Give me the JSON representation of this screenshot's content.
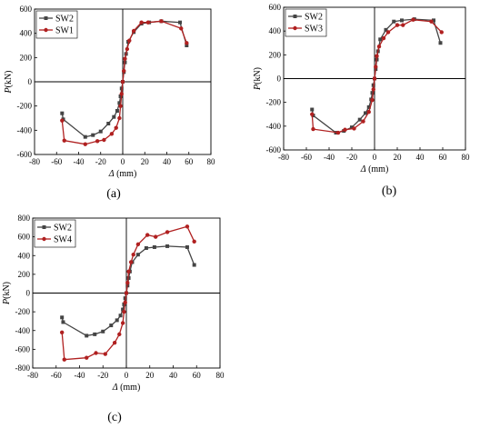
{
  "chart_data": [
    {
      "type": "line",
      "panel_label": "(a)",
      "xlabel_symbol": "Δ",
      "xlabel_unit": " (mm)",
      "ylabel_symbol": "P",
      "ylabel_unit": "(kN)",
      "xlim": [
        -80,
        80
      ],
      "ylim": [
        -600,
        600
      ],
      "xticks": [
        -80,
        -60,
        -40,
        -20,
        0,
        20,
        40,
        60,
        80
      ],
      "yticks": [
        -600,
        -400,
        -200,
        0,
        200,
        400,
        600
      ],
      "legend_position": "top-left",
      "series": [
        {
          "name": "SW2",
          "color": "#444444",
          "marker": "square",
          "points": [
            [
              -55,
              -260
            ],
            [
              -54,
              -310
            ],
            [
              -34,
              -455
            ],
            [
              -27,
              -440
            ],
            [
              -20,
              -410
            ],
            [
              -13,
              -345
            ],
            [
              -8,
              -290
            ],
            [
              -5,
              -240
            ],
            [
              -3,
              -175
            ],
            [
              -2,
              -120
            ],
            [
              -1,
              -55
            ],
            [
              0,
              0
            ],
            [
              1,
              80
            ],
            [
              2,
              160
            ],
            [
              3,
              230
            ],
            [
              5,
              330
            ],
            [
              10,
              410
            ],
            [
              17,
              480
            ],
            [
              24,
              490
            ],
            [
              35,
              500
            ],
            [
              52,
              490
            ],
            [
              58,
              300
            ]
          ]
        },
        {
          "name": "SW1",
          "color": "#b02020",
          "marker": "circle",
          "points": [
            [
              -55,
              -320
            ],
            [
              -53,
              -485
            ],
            [
              -34,
              -515
            ],
            [
              -23,
              -490
            ],
            [
              -17,
              -480
            ],
            [
              -10,
              -430
            ],
            [
              -6,
              -380
            ],
            [
              -3,
              -300
            ],
            [
              -2,
              -200
            ],
            [
              -1,
              -100
            ],
            [
              0,
              0
            ],
            [
              1,
              90
            ],
            [
              2,
              190
            ],
            [
              4,
              270
            ],
            [
              6,
              340
            ],
            [
              10,
              420
            ],
            [
              17,
              490
            ],
            [
              23,
              490
            ],
            [
              35,
              500
            ],
            [
              53,
              440
            ],
            [
              58,
              320
            ]
          ]
        }
      ]
    },
    {
      "type": "line",
      "panel_label": "(b)",
      "xlabel_symbol": "Δ",
      "xlabel_unit": " (mm)",
      "ylabel_symbol": "P",
      "ylabel_unit": "(kN)",
      "xlim": [
        -80,
        80
      ],
      "ylim": [
        -600,
        600
      ],
      "xticks": [
        -80,
        -60,
        -40,
        -20,
        0,
        20,
        40,
        60,
        80
      ],
      "yticks": [
        -600,
        -400,
        -200,
        0,
        200,
        400,
        600
      ],
      "legend_position": "top-left",
      "series": [
        {
          "name": "SW2",
          "color": "#444444",
          "marker": "square",
          "points": [
            [
              -55,
              -260
            ],
            [
              -54,
              -310
            ],
            [
              -34,
              -455
            ],
            [
              -27,
              -440
            ],
            [
              -20,
              -410
            ],
            [
              -13,
              -345
            ],
            [
              -8,
              -290
            ],
            [
              -5,
              -240
            ],
            [
              -3,
              -175
            ],
            [
              -2,
              -120
            ],
            [
              -1,
              -55
            ],
            [
              0,
              0
            ],
            [
              1,
              80
            ],
            [
              2,
              160
            ],
            [
              3,
              230
            ],
            [
              5,
              330
            ],
            [
              10,
              410
            ],
            [
              17,
              480
            ],
            [
              24,
              490
            ],
            [
              35,
              500
            ],
            [
              52,
              490
            ],
            [
              58,
              300
            ]
          ]
        },
        {
          "name": "SW3",
          "color": "#b02020",
          "marker": "circle",
          "points": [
            [
              -55,
              -300
            ],
            [
              -54,
              -425
            ],
            [
              -32,
              -455
            ],
            [
              -26,
              -430
            ],
            [
              -18,
              -420
            ],
            [
              -10,
              -360
            ],
            [
              -5,
              -280
            ],
            [
              -2,
              -180
            ],
            [
              -1,
              -90
            ],
            [
              0,
              0
            ],
            [
              1,
              100
            ],
            [
              2,
              190
            ],
            [
              4,
              270
            ],
            [
              8,
              340
            ],
            [
              12,
              390
            ],
            [
              20,
              450
            ],
            [
              25,
              450
            ],
            [
              34,
              495
            ],
            [
              50,
              480
            ],
            [
              59,
              390
            ]
          ]
        }
      ]
    },
    {
      "type": "line",
      "panel_label": "(c)",
      "xlabel_symbol": "Δ",
      "xlabel_unit": " (mm)",
      "ylabel_symbol": "P",
      "ylabel_unit": "(kN)",
      "xlim": [
        -80,
        80
      ],
      "ylim": [
        -800,
        800
      ],
      "xticks": [
        -80,
        -60,
        -40,
        -20,
        0,
        20,
        40,
        60,
        80
      ],
      "yticks": [
        -800,
        -600,
        -400,
        -200,
        0,
        200,
        400,
        600,
        800
      ],
      "legend_position": "top-left",
      "series": [
        {
          "name": "SW2",
          "color": "#444444",
          "marker": "square",
          "points": [
            [
              -55,
              -260
            ],
            [
              -54,
              -310
            ],
            [
              -34,
              -455
            ],
            [
              -27,
              -440
            ],
            [
              -20,
              -410
            ],
            [
              -13,
              -345
            ],
            [
              -8,
              -290
            ],
            [
              -5,
              -240
            ],
            [
              -3,
              -175
            ],
            [
              -2,
              -120
            ],
            [
              -1,
              -55
            ],
            [
              0,
              0
            ],
            [
              1,
              80
            ],
            [
              2,
              160
            ],
            [
              3,
              230
            ],
            [
              5,
              330
            ],
            [
              10,
              410
            ],
            [
              17,
              480
            ],
            [
              24,
              490
            ],
            [
              35,
              500
            ],
            [
              52,
              490
            ],
            [
              58,
              300
            ]
          ]
        },
        {
          "name": "SW4",
          "color": "#b02020",
          "marker": "circle",
          "points": [
            [
              -55,
              -420
            ],
            [
              -53,
              -710
            ],
            [
              -34,
              -690
            ],
            [
              -26,
              -640
            ],
            [
              -18,
              -650
            ],
            [
              -10,
              -530
            ],
            [
              -6,
              -440
            ],
            [
              -3,
              -320
            ],
            [
              -2,
              -200
            ],
            [
              -1,
              -100
            ],
            [
              0,
              0
            ],
            [
              1,
              110
            ],
            [
              2,
              230
            ],
            [
              4,
              330
            ],
            [
              6,
              410
            ],
            [
              10,
              520
            ],
            [
              18,
              620
            ],
            [
              25,
              600
            ],
            [
              35,
              650
            ],
            [
              52,
              710
            ],
            [
              58,
              550
            ]
          ]
        }
      ]
    }
  ]
}
